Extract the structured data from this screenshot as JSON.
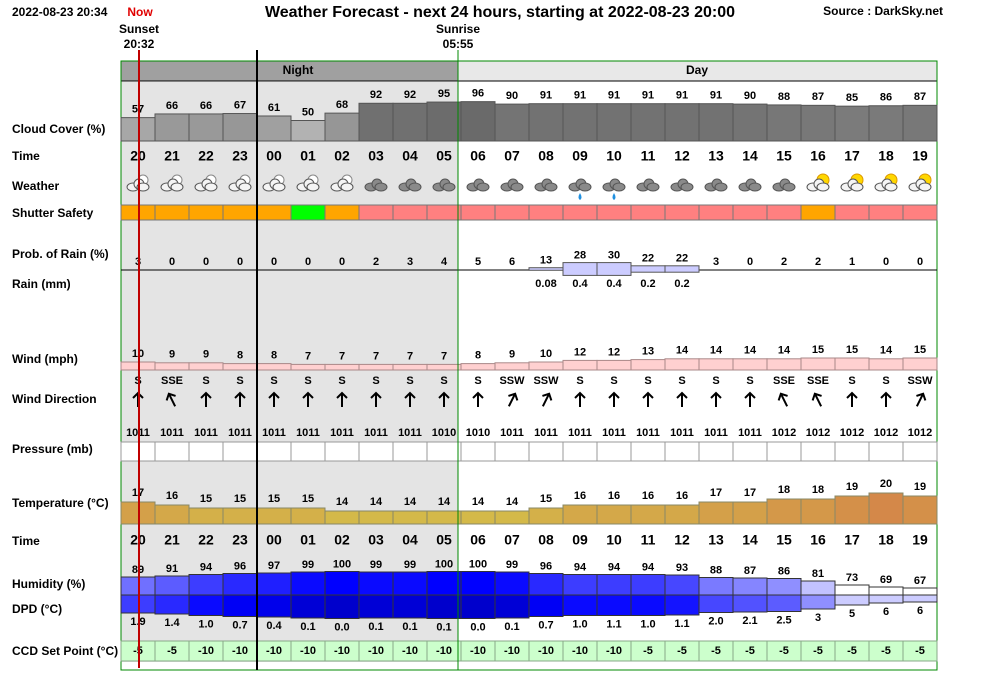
{
  "header": {
    "timestamp": "2022-08-23 20:34",
    "now": "Now",
    "title": "Weather Forecast - next 24 hours, starting at 2022-08-23 20:00",
    "source": "Source : DarkSky.net"
  },
  "sun": {
    "sunset_label": "Sunset",
    "sunset_time": "20:32",
    "sunrise_label": "Sunrise",
    "sunrise_time": "05:55"
  },
  "periods": {
    "night": "Night",
    "day": "Day"
  },
  "hours": [
    "20",
    "21",
    "22",
    "23",
    "00",
    "01",
    "02",
    "03",
    "04",
    "05",
    "06",
    "07",
    "08",
    "09",
    "10",
    "11",
    "12",
    "13",
    "14",
    "15",
    "16",
    "17",
    "18",
    "19"
  ],
  "rows": {
    "cloud_cover": {
      "label": "Cloud Cover (%)",
      "values": [
        57,
        66,
        66,
        67,
        61,
        50,
        68,
        92,
        92,
        95,
        96,
        90,
        91,
        91,
        91,
        91,
        91,
        91,
        90,
        88,
        87,
        85,
        86,
        87
      ]
    },
    "time": {
      "label": "Time"
    },
    "weather": {
      "label": "Weather"
    },
    "shutter_safety": {
      "label": "Shutter Safety",
      "colors": [
        "#ffa500",
        "#ffa500",
        "#ffa500",
        "#ffa500",
        "#ffa500",
        "#00ff00",
        "#ffa500",
        "#ff8080",
        "#ff8080",
        "#ff8080",
        "#ff8080",
        "#ff8080",
        "#ff8080",
        "#ff8080",
        "#ff8080",
        "#ff8080",
        "#ff8080",
        "#ff8080",
        "#ff8080",
        "#ff8080",
        "#ffa500",
        "#ff8080",
        "#ff8080",
        "#ff8080"
      ]
    },
    "rain_probability": {
      "label": "Prob. of Rain (%)",
      "values": [
        3,
        0,
        0,
        0,
        0,
        0,
        0,
        2,
        3,
        4,
        5,
        6,
        13,
        28,
        30,
        22,
        22,
        3,
        0,
        2,
        2,
        1,
        0,
        0
      ]
    },
    "rain": {
      "label": "Rain (mm)",
      "values": [
        null,
        null,
        null,
        null,
        null,
        null,
        null,
        null,
        null,
        null,
        null,
        null,
        0.08,
        0.4,
        0.4,
        0.2,
        0.2,
        null,
        null,
        null,
        null,
        null,
        null,
        null
      ]
    },
    "wind": {
      "label": "Wind (mph)",
      "values": [
        10,
        9,
        9,
        8,
        8,
        7,
        7,
        7,
        7,
        7,
        8,
        9,
        10,
        12,
        12,
        13,
        14,
        14,
        14,
        14,
        15,
        15,
        14,
        15
      ]
    },
    "wind_direction": {
      "label": "Wind Direction",
      "values": [
        "S",
        "SSE",
        "S",
        "S",
        "S",
        "S",
        "S",
        "S",
        "S",
        "S",
        "S",
        "SSW",
        "SSW",
        "S",
        "S",
        "S",
        "S",
        "S",
        "S",
        "SSE",
        "SSE",
        "S",
        "S",
        "SSW"
      ]
    },
    "pressure": {
      "label": "Pressure (mb)",
      "values": [
        1011,
        1011,
        1011,
        1011,
        1011,
        1011,
        1011,
        1011,
        1011,
        1010,
        1010,
        1011,
        1011,
        1011,
        1011,
        1011,
        1011,
        1011,
        1011,
        1012,
        1012,
        1012,
        1012,
        1012
      ]
    },
    "temperature": {
      "label": "Temperature (°C)",
      "values": [
        17,
        16,
        15,
        15,
        15,
        15,
        14,
        14,
        14,
        14,
        14,
        14,
        15,
        16,
        16,
        16,
        16,
        17,
        17,
        18,
        18,
        19,
        20,
        19
      ]
    },
    "time2": {
      "label": "Time"
    },
    "humidity": {
      "label": "Humidity (%)",
      "values": [
        89,
        91,
        94,
        96,
        97,
        99,
        100,
        99,
        99,
        100,
        100,
        99,
        96,
        94,
        94,
        94,
        93,
        88,
        87,
        86,
        81,
        73,
        69,
        67
      ]
    },
    "dpd": {
      "label": "DPD (°C)",
      "values": [
        1.9,
        1.4,
        1.0,
        0.7,
        0.4,
        0.1,
        0.0,
        0.1,
        0.1,
        0.1,
        0.0,
        0.1,
        0.7,
        1.0,
        1.1,
        1.0,
        1.1,
        2.0,
        2.1,
        2.5,
        3,
        5,
        6,
        6
      ],
      "value_labels": [
        "1.9",
        "1.4",
        "1.0",
        "0.7",
        "0.4",
        "0.1",
        "0.0",
        "0.1",
        "0.1",
        "0.1",
        "0.0",
        "0.1",
        "0.7",
        "1.0",
        "1.1",
        "1.0",
        "1.1",
        "2.0",
        "2.1",
        "2.5",
        "3",
        "5",
        "6",
        "6"
      ]
    },
    "ccd_set_point": {
      "label": "CCD Set Point (°C)",
      "values": [
        -5,
        -5,
        -10,
        -10,
        -10,
        -10,
        -10,
        -10,
        -10,
        -10,
        -10,
        -10,
        -10,
        -10,
        -10,
        -5,
        -5,
        -5,
        -5,
        -5,
        -5,
        -5,
        -5,
        -5
      ]
    }
  }
}
